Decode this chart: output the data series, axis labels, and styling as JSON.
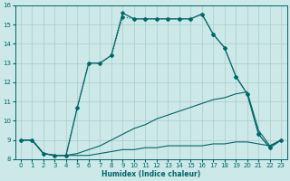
{
  "xlabel": "Humidex (Indice chaleur)",
  "xlim": [
    -0.5,
    23.5
  ],
  "ylim": [
    8,
    16
  ],
  "xticks": [
    0,
    1,
    2,
    3,
    4,
    5,
    6,
    7,
    8,
    9,
    10,
    11,
    12,
    13,
    14,
    15,
    16,
    17,
    18,
    19,
    20,
    21,
    22,
    23
  ],
  "yticks": [
    8,
    9,
    10,
    11,
    12,
    13,
    14,
    15,
    16
  ],
  "bg_color": "#cce8e8",
  "grid_color": "#aacccc",
  "line_color": "#006666",
  "line1_x": [
    0,
    1,
    2,
    3,
    4,
    5,
    6,
    7,
    8,
    9,
    10,
    11,
    12,
    13,
    14,
    15,
    16,
    17,
    18,
    19,
    20,
    21,
    22,
    23
  ],
  "line1_y": [
    9.0,
    9.0,
    8.3,
    8.2,
    8.2,
    8.2,
    8.2,
    8.3,
    8.4,
    8.5,
    8.5,
    8.6,
    8.6,
    8.7,
    8.7,
    8.7,
    8.7,
    8.8,
    8.8,
    8.9,
    8.9,
    8.8,
    8.7,
    9.0
  ],
  "line2_x": [
    0,
    1,
    2,
    3,
    4,
    5,
    6,
    7,
    8,
    9,
    10,
    11,
    12,
    13,
    14,
    15,
    16,
    17,
    18,
    19,
    20,
    21,
    22,
    23
  ],
  "line2_y": [
    9.0,
    9.0,
    8.3,
    8.2,
    8.2,
    8.3,
    8.5,
    8.7,
    9.0,
    9.3,
    9.6,
    9.8,
    10.1,
    10.3,
    10.5,
    10.7,
    10.9,
    11.1,
    11.2,
    11.4,
    11.5,
    9.5,
    8.7,
    9.0
  ],
  "line3_x": [
    0,
    1,
    2,
    3,
    4,
    5,
    6,
    7,
    8,
    9,
    10,
    11,
    12,
    13,
    14,
    15,
    16,
    17,
    18,
    19,
    20,
    21,
    22,
    23
  ],
  "line3_y": [
    9.0,
    9.0,
    8.3,
    8.2,
    8.2,
    10.7,
    13.0,
    13.0,
    13.4,
    15.4,
    15.3,
    15.3,
    15.3,
    15.3,
    15.3,
    15.3,
    15.55,
    14.5,
    13.8,
    12.3,
    11.4,
    9.3,
    8.6,
    9.0
  ],
  "line4_x": [
    0,
    1,
    2,
    3,
    4,
    5,
    6,
    7,
    8,
    9,
    10,
    11,
    12,
    13,
    14,
    15,
    16,
    17,
    18,
    19,
    20,
    21,
    22,
    23
  ],
  "line4_y": [
    9.0,
    9.0,
    8.3,
    8.2,
    8.2,
    10.7,
    13.0,
    13.0,
    13.4,
    15.6,
    15.3,
    15.3,
    15.3,
    15.3,
    15.3,
    15.3,
    15.55,
    14.5,
    13.8,
    12.3,
    11.4,
    9.3,
    8.6,
    9.0
  ]
}
